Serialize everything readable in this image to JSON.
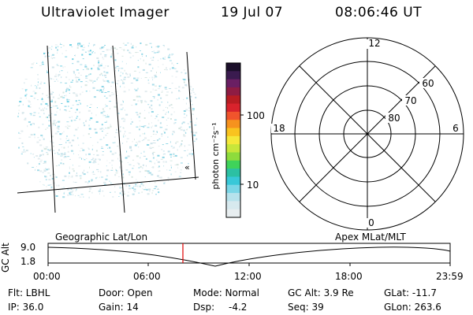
{
  "header": {
    "instrument": "Ultraviolet Imager",
    "date": "19 Jul 07",
    "time": "08:06:46 UT"
  },
  "imager": {
    "marker": "«"
  },
  "colorbar": {
    "label": "photon cm⁻²s⁻¹",
    "ticks": [
      "100",
      "10"
    ],
    "colors": [
      "#1b0f2a",
      "#3a1b4f",
      "#6a1f63",
      "#8e1c43",
      "#b81d22",
      "#d8232c",
      "#f0542c",
      "#f6921e",
      "#f9c31f",
      "#f5e83a",
      "#c8e63a",
      "#8edc3c",
      "#3fd35a",
      "#2cc0a3",
      "#38c8d8",
      "#7ad6e6",
      "#b6e2ec",
      "#d7e9ee",
      "#e8eef0"
    ]
  },
  "polar": {
    "labels": {
      "top": "12",
      "bottom": "0",
      "left": "18",
      "right": "6",
      "r60": "60",
      "r70": "70",
      "r80": "80"
    }
  },
  "orbit": {
    "left_title": "Geographic Lat/Lon",
    "right_title": "Apex MLat/MLT",
    "yaxis_label": "GC Alt",
    "y_top": "9.0",
    "y_bottom": "1.8",
    "time_ticks": [
      "00:00",
      "06:00",
      "12:00",
      "18:00",
      "23:59"
    ],
    "current_time_color": "#e00000"
  },
  "info": {
    "flt": "Flt: LBHL",
    "ip": "IP: 36.0",
    "door": "Door: Open",
    "gain": "Gain: 14",
    "mode": "Mode: Normal",
    "dsp": "Dsp:",
    "dsp_value": "-4.2",
    "gcalt": "GC Alt: 3.9 Re",
    "seq": "Seq: 39",
    "glat": "GLat: -11.7",
    "glon": "GLon: 263.6"
  }
}
